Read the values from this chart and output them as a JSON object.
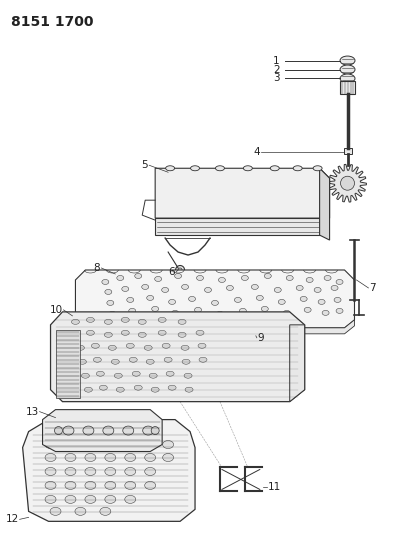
{
  "title": "8151 1700",
  "bg_color": "#ffffff",
  "line_color": "#333333",
  "label_color": "#222222",
  "label_fontsize": 7.5,
  "title_fontsize": 10,
  "fig_width": 4.11,
  "fig_height": 5.33,
  "dpi": 100,
  "part_fill": "#f0f0f0",
  "part_fill_dark": "#d8d8d8",
  "part_fill_mid": "#e8e8e8"
}
